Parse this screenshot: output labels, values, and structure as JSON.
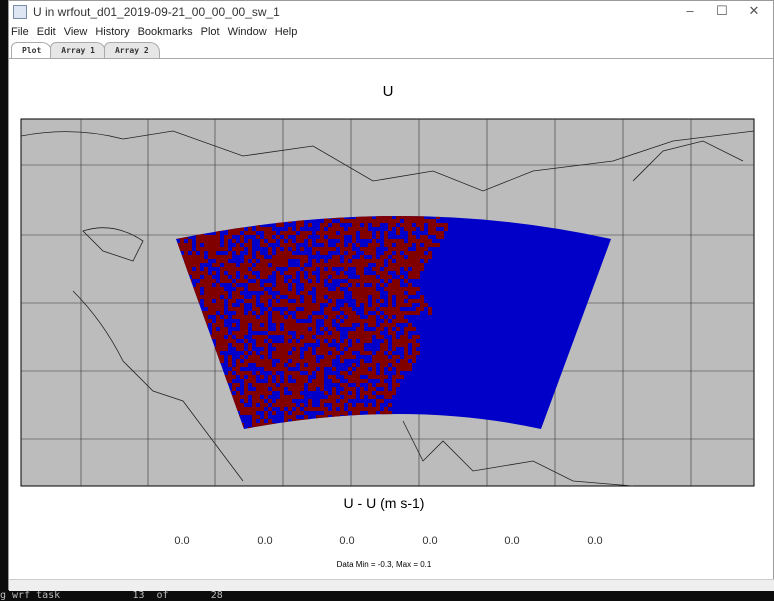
{
  "window": {
    "title": "U in wrfout_d01_2019-09-21_00_00_00_sw_1"
  },
  "menu": [
    "File",
    "Edit",
    "View",
    "History",
    "Bookmarks",
    "Plot",
    "Window",
    "Help"
  ],
  "tabs": [
    "Plot",
    "Array 1",
    "Array 2"
  ],
  "plot": {
    "title": "U",
    "colorbar_title": "U - U (m s-1)",
    "colorbar_labels": [
      "0.0",
      "0.0",
      "0.0",
      "0.0",
      "0.0",
      "0.0"
    ],
    "data_range": "Data Min = -0.3, Max = 0.1"
  },
  "colors": {
    "map_bg": "#bcbcbc",
    "low": "#0000c8",
    "high": "#800000"
  },
  "terminal": {
    "line": "g wrf task            13  of       28"
  }
}
